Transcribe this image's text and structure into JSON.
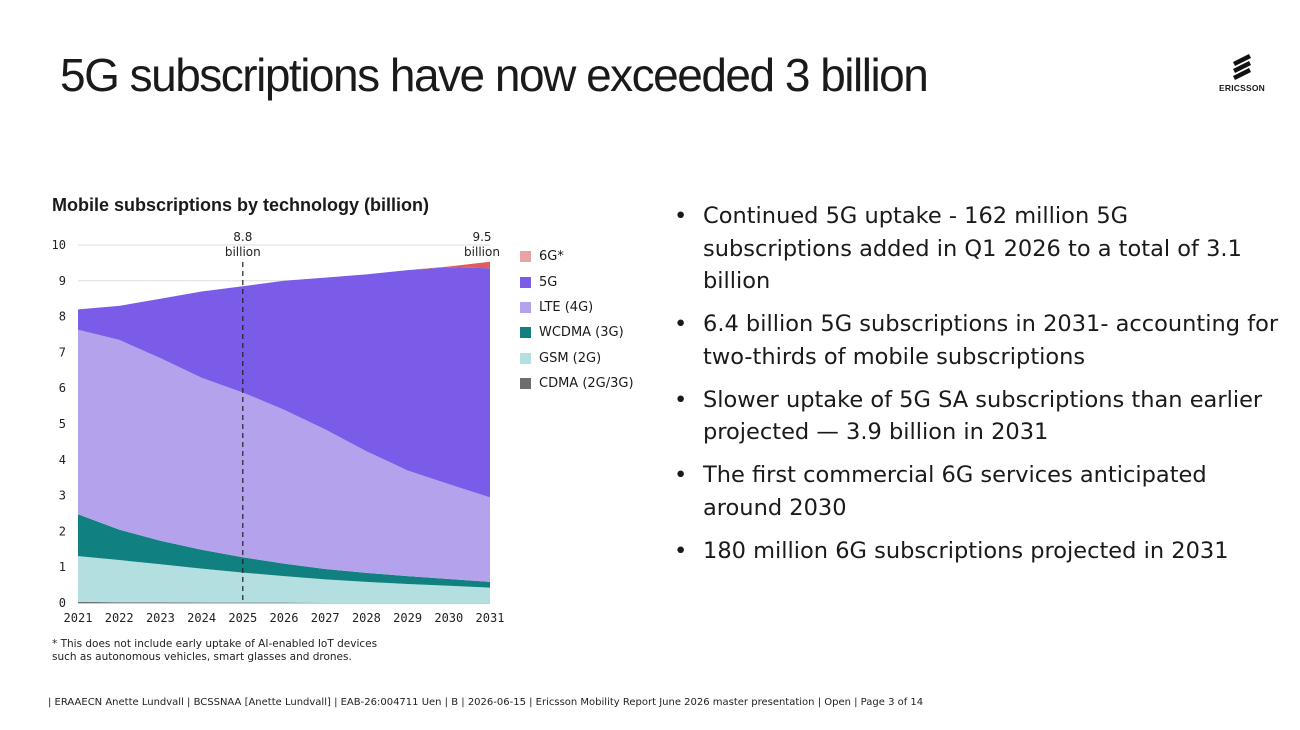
{
  "slide": {
    "title": "5G subscriptions have now exceeded 3 billion",
    "logo_text": "ERICSSON",
    "bullets": [
      "Continued 5G uptake - 162 million 5G subscriptions added in Q1 2026 to a total of 3.1 billion",
      "6.4 billion 5G subscriptions in 2031- accounting for two-thirds of mobile subscriptions",
      "Slower uptake of 5G SA subscriptions than earlier projected — 3.9 billion in 2031",
      "The first commercial 6G services anticipated around 2030",
      "180 million 6G subscriptions projected in 2031"
    ],
    "footnote_line1": "* This does not include early uptake of AI-enabled IoT devices",
    "footnote_line2": "such as autonomous vehicles, smart glasses and drones.",
    "footer": "| ERAAECN Anette Lundvall | BCSSNAA [Anette Lundvall] | EAB-26:004711 Uen | B | 2026-06-15 | Ericsson Mobility Report June 2026 master presentation | Open | Page 3 of 14"
  },
  "chart_data": {
    "type": "area",
    "stacked": true,
    "title": "Mobile subscriptions by technology (billion)",
    "xlabel": "",
    "ylabel": "",
    "x": [
      "2021",
      "2022",
      "2023",
      "2024",
      "2025",
      "2026",
      "2027",
      "2028",
      "2029",
      "2030",
      "2031"
    ],
    "ylim": [
      0,
      10
    ],
    "yticks": [
      0,
      1,
      2,
      3,
      4,
      5,
      6,
      7,
      8,
      9,
      10
    ],
    "grid": "horizontal",
    "series": [
      {
        "name": "CDMA (2G/3G)",
        "color": "#6e6e6e",
        "values": [
          0.03,
          0.02,
          0.02,
          0.01,
          0.01,
          0.01,
          0,
          0,
          0,
          0,
          0
        ]
      },
      {
        "name": "GSM (2G)",
        "color": "#b3dfe0",
        "values": [
          1.28,
          1.18,
          1.06,
          0.95,
          0.84,
          0.74,
          0.66,
          0.59,
          0.53,
          0.48,
          0.43
        ]
      },
      {
        "name": "WCDMA (3G)",
        "color": "#118080",
        "values": [
          1.17,
          0.85,
          0.66,
          0.53,
          0.43,
          0.35,
          0.29,
          0.25,
          0.22,
          0.19,
          0.16
        ]
      },
      {
        "name": "LTE (4G)",
        "color": "#b4a3ec",
        "values": [
          5.15,
          5.3,
          5.1,
          4.8,
          4.6,
          4.3,
          3.9,
          3.4,
          2.95,
          2.65,
          2.36
        ]
      },
      {
        "name": "5G",
        "color": "#7a5ce8",
        "values": [
          0.57,
          0.95,
          1.66,
          2.41,
          2.97,
          3.6,
          4.24,
          4.94,
          5.6,
          6.06,
          6.4
        ]
      },
      {
        "name": "6G*",
        "color": "#e05a5f",
        "values": [
          0,
          0,
          0,
          0,
          0,
          0,
          0,
          0,
          0,
          0.02,
          0.18
        ]
      }
    ],
    "legend_order": [
      "6G*",
      "5G",
      "LTE (4G)",
      "WCDMA (3G)",
      "GSM (2G)",
      "CDMA (2G/3G)"
    ],
    "legend_position": "right",
    "annotations": [
      {
        "x": "2025",
        "value_label": "8.8",
        "unit_label": "billion",
        "dashed_line": true
      },
      {
        "x": "2031",
        "value_label": "9.5",
        "unit_label": "billion",
        "dashed_line": false
      }
    ]
  }
}
